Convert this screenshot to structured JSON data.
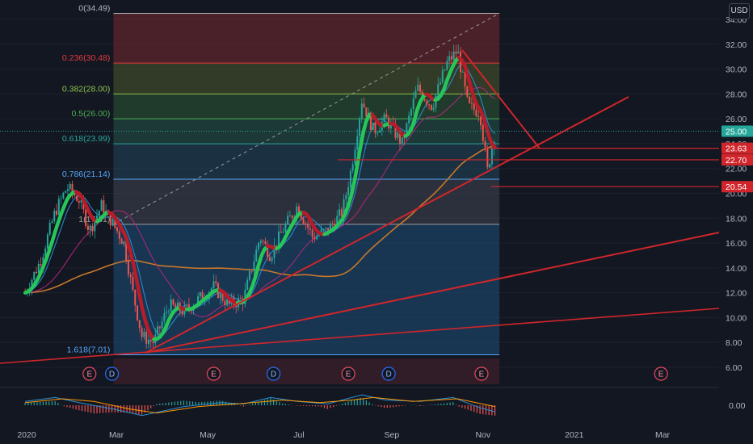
{
  "currency": "USD",
  "colors": {
    "background": "#131722",
    "axis_text": "#b2b5be",
    "grid": "#1e222d",
    "trend": "#d0262b",
    "bull_band": "#26c65a",
    "bear_band": "#b71c2a",
    "ma_long": "#c8772b",
    "ma_mid": "#b0287a",
    "ma_short": "#2a8fd6",
    "candle_up": "#26a69a",
    "candle_down": "#ef5350",
    "macd": "#2a8fd6",
    "signal": "#ff9800",
    "earnings_badge": "#e84a5f",
    "dividend_badge": "#2a6df5"
  },
  "chart_data": {
    "type": "candlestick",
    "x_ticks": [
      "2020",
      "Mar",
      "May",
      "Jul",
      "Sep",
      "Nov",
      "2021",
      "Mar"
    ],
    "y_ticks": [
      "34.00",
      "32.00",
      "30.00",
      "28.00",
      "26.00",
      "24.00",
      "22.00",
      "20.00",
      "18.00",
      "16.00",
      "14.00",
      "12.00",
      "10.00",
      "8.00",
      "6.00"
    ],
    "ylim": [
      6,
      34.5
    ],
    "macd_y_ticks": [
      "0.00"
    ],
    "fibonacci": [
      {
        "label": "0(34.49)",
        "price": 34.49,
        "color": "#b2b5be"
      },
      {
        "label": "0.236(30.48)",
        "price": 30.48,
        "color": "#e23b3b"
      },
      {
        "label": "0.382(28.00)",
        "price": 28.0,
        "color": "#8bc34a"
      },
      {
        "label": "0.5(26.00)",
        "price": 26.0,
        "color": "#4caf50"
      },
      {
        "label": "0.618(23.99)",
        "price": 23.99,
        "color": "#26a69a"
      },
      {
        "label": "0.786(21.14)",
        "price": 21.14,
        "color": "#56a6f5"
      },
      {
        "label": "1(17.51)",
        "price": 17.51,
        "color": "#9e9e9e"
      },
      {
        "label": "1.618(7.01)",
        "price": 7.01,
        "color": "#56a6f5"
      }
    ],
    "price_labels": [
      {
        "text": "25.00",
        "price": 25.0,
        "color": "#26a69a"
      },
      {
        "text": "23.63",
        "price": 23.63,
        "color": "#d0262b"
      },
      {
        "text": "22.70",
        "price": 22.7,
        "color": "#d0262b"
      },
      {
        "text": "20.54",
        "price": 20.54,
        "color": "#d0262b"
      }
    ],
    "horizontal_lines": [
      23.63,
      22.7,
      20.54
    ],
    "events": [
      {
        "kind": "E",
        "date": "2020-02-12"
      },
      {
        "kind": "D",
        "date": "2020-02-27"
      },
      {
        "kind": "E",
        "date": "2020-05-05"
      },
      {
        "kind": "D",
        "date": "2020-06-14"
      },
      {
        "kind": "E",
        "date": "2020-08-03"
      },
      {
        "kind": "D",
        "date": "2020-08-30"
      },
      {
        "kind": "E",
        "date": "2020-10-31"
      },
      {
        "kind": "E",
        "date": "2021-02-28"
      }
    ],
    "close_path": [
      [
        "2019-12-31",
        12.0
      ],
      [
        "2020-01-10",
        14.5
      ],
      [
        "2020-01-20",
        18.5
      ],
      [
        "2020-01-28",
        20.5
      ],
      [
        "2020-02-05",
        19.5
      ],
      [
        "2020-02-12",
        17.0
      ],
      [
        "2020-02-20",
        19.0
      ],
      [
        "2020-02-28",
        17.5
      ],
      [
        "2020-03-06",
        16.0
      ],
      [
        "2020-03-12",
        12.0
      ],
      [
        "2020-03-18",
        8.5
      ],
      [
        "2020-03-26",
        8.0
      ],
      [
        "2020-04-05",
        11.0
      ],
      [
        "2020-04-15",
        10.5
      ],
      [
        "2020-04-25",
        11.5
      ],
      [
        "2020-05-05",
        12.5
      ],
      [
        "2020-05-15",
        11.0
      ],
      [
        "2020-05-25",
        11.5
      ],
      [
        "2020-06-05",
        16.5
      ],
      [
        "2020-06-12",
        15.0
      ],
      [
        "2020-06-20",
        17.0
      ],
      [
        "2020-06-30",
        19.0
      ],
      [
        "2020-07-10",
        16.5
      ],
      [
        "2020-07-20",
        17.0
      ],
      [
        "2020-07-30",
        18.5
      ],
      [
        "2020-08-05",
        22.0
      ],
      [
        "2020-08-12",
        27.5
      ],
      [
        "2020-08-20",
        25.0
      ],
      [
        "2020-08-28",
        26.0
      ],
      [
        "2020-09-08",
        24.0
      ],
      [
        "2020-09-18",
        28.5
      ],
      [
        "2020-09-28",
        27.0
      ],
      [
        "2020-10-08",
        30.5
      ],
      [
        "2020-10-15",
        31.5
      ],
      [
        "2020-10-22",
        27.0
      ],
      [
        "2020-10-30",
        26.5
      ],
      [
        "2020-11-04",
        21.8
      ],
      [
        "2020-11-09",
        25.0
      ]
    ],
    "macd": [
      [
        "2019-12-31",
        0.3
      ],
      [
        "2020-01-20",
        0.6
      ],
      [
        "2020-02-05",
        0.2
      ],
      [
        "2020-02-28",
        -0.3
      ],
      [
        "2020-03-18",
        -0.8
      ],
      [
        "2020-04-15",
        -0.1
      ],
      [
        "2020-05-10",
        0.2
      ],
      [
        "2020-05-25",
        0.1
      ],
      [
        "2020-06-12",
        0.6
      ],
      [
        "2020-06-30",
        0.3
      ],
      [
        "2020-07-20",
        0.1
      ],
      [
        "2020-08-12",
        0.8
      ],
      [
        "2020-08-28",
        0.4
      ],
      [
        "2020-09-20",
        0.3
      ],
      [
        "2020-10-12",
        0.6
      ],
      [
        "2020-10-30",
        -0.2
      ],
      [
        "2020-11-09",
        -0.5
      ]
    ],
    "signal": [
      [
        "2019-12-31",
        0.2
      ],
      [
        "2020-01-25",
        0.5
      ],
      [
        "2020-02-15",
        0.3
      ],
      [
        "2020-03-10",
        -0.3
      ],
      [
        "2020-03-28",
        -0.6
      ],
      [
        "2020-04-25",
        -0.1
      ],
      [
        "2020-05-20",
        0.1
      ],
      [
        "2020-06-20",
        0.4
      ],
      [
        "2020-07-15",
        0.2
      ],
      [
        "2020-08-05",
        0.4
      ],
      [
        "2020-08-20",
        0.6
      ],
      [
        "2020-09-15",
        0.3
      ],
      [
        "2020-10-15",
        0.5
      ],
      [
        "2020-11-09",
        -0.1
      ]
    ]
  }
}
